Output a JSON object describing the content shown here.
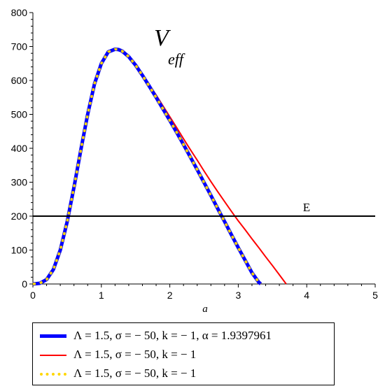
{
  "chart_data": {
    "type": "line",
    "title": "V_eff",
    "title_main": "V",
    "title_sub": "eff",
    "xlabel": "a",
    "ylabel": "",
    "xlim": [
      0,
      5
    ],
    "ylim": [
      0,
      800
    ],
    "x_ticks": [
      "0",
      "1",
      "2",
      "3",
      "4",
      "5"
    ],
    "y_ticks": [
      "0",
      "100",
      "200",
      "300",
      "400",
      "500",
      "600",
      "700",
      "800"
    ],
    "grid": false,
    "legend_position": "bottom",
    "hline": {
      "y": 200,
      "label": "E"
    },
    "series": [
      {
        "name": "Λ = 1.5, σ = − 50, k = − 1, α = 1.9397961",
        "color": "#0000ff",
        "style": "solid-thick",
        "x": [
          0.0,
          0.1,
          0.2,
          0.3,
          0.4,
          0.5,
          0.6,
          0.7,
          0.8,
          0.9,
          1.0,
          1.1,
          1.2,
          1.25,
          1.3,
          1.4,
          1.5,
          1.6,
          1.7,
          1.8,
          1.9,
          2.0,
          2.1,
          2.2,
          2.3,
          2.4,
          2.5,
          2.6,
          2.7,
          2.8,
          2.9,
          3.0,
          3.1,
          3.2,
          3.3,
          3.33
        ],
        "y": [
          0,
          2,
          13,
          43,
          100,
          183,
          285,
          395,
          500,
          590,
          650,
          684,
          692,
          691,
          687,
          670,
          645,
          615,
          583,
          550,
          516,
          482,
          447,
          411,
          374,
          337,
          299,
          261,
          222,
          184,
          145,
          107,
          70,
          33,
          5,
          0
        ]
      },
      {
        "name": "Λ = 1.5, σ = − 50, k = − 1",
        "color": "#ff0000",
        "style": "solid",
        "x": [
          0.0,
          0.1,
          0.2,
          0.3,
          0.4,
          0.5,
          0.6,
          0.7,
          0.8,
          0.9,
          1.0,
          1.1,
          1.2,
          1.25,
          1.3,
          1.4,
          1.5,
          1.6,
          1.7,
          1.8,
          1.9,
          2.0,
          2.1,
          2.2,
          2.3,
          2.4,
          2.5,
          2.6,
          2.7,
          2.8,
          2.9,
          3.0,
          3.1,
          3.2,
          3.3,
          3.4,
          3.5,
          3.6,
          3.7
        ],
        "y": [
          0,
          2,
          13,
          43,
          100,
          183,
          285,
          395,
          500,
          590,
          650,
          684,
          692,
          691,
          687,
          670,
          647,
          619,
          588,
          557,
          525,
          493,
          461,
          428,
          396,
          365,
          333,
          302,
          272,
          243,
          214,
          186,
          160,
          133,
          107,
          80,
          54,
          27,
          0
        ]
      },
      {
        "name": "Λ = 1.5, σ = − 50, k = − 1",
        "color": "#ffd700",
        "style": "dotted",
        "x": [
          0.0,
          0.1,
          0.2,
          0.3,
          0.4,
          0.5,
          0.6,
          0.7,
          0.8,
          0.9,
          1.0,
          1.1,
          1.2,
          1.25,
          1.3,
          1.4,
          1.5,
          1.6,
          1.7,
          1.8,
          1.9,
          2.0,
          2.1,
          2.2,
          2.3,
          2.4,
          2.5,
          2.6,
          2.7,
          2.8,
          2.9,
          3.0,
          3.1,
          3.2,
          3.3,
          3.33
        ],
        "y": [
          0,
          2,
          13,
          43,
          100,
          183,
          285,
          395,
          500,
          590,
          650,
          684,
          692,
          691,
          687,
          670,
          645,
          615,
          583,
          550,
          516,
          482,
          447,
          411,
          374,
          337,
          299,
          261,
          222,
          184,
          145,
          107,
          70,
          33,
          5,
          0
        ]
      }
    ]
  }
}
